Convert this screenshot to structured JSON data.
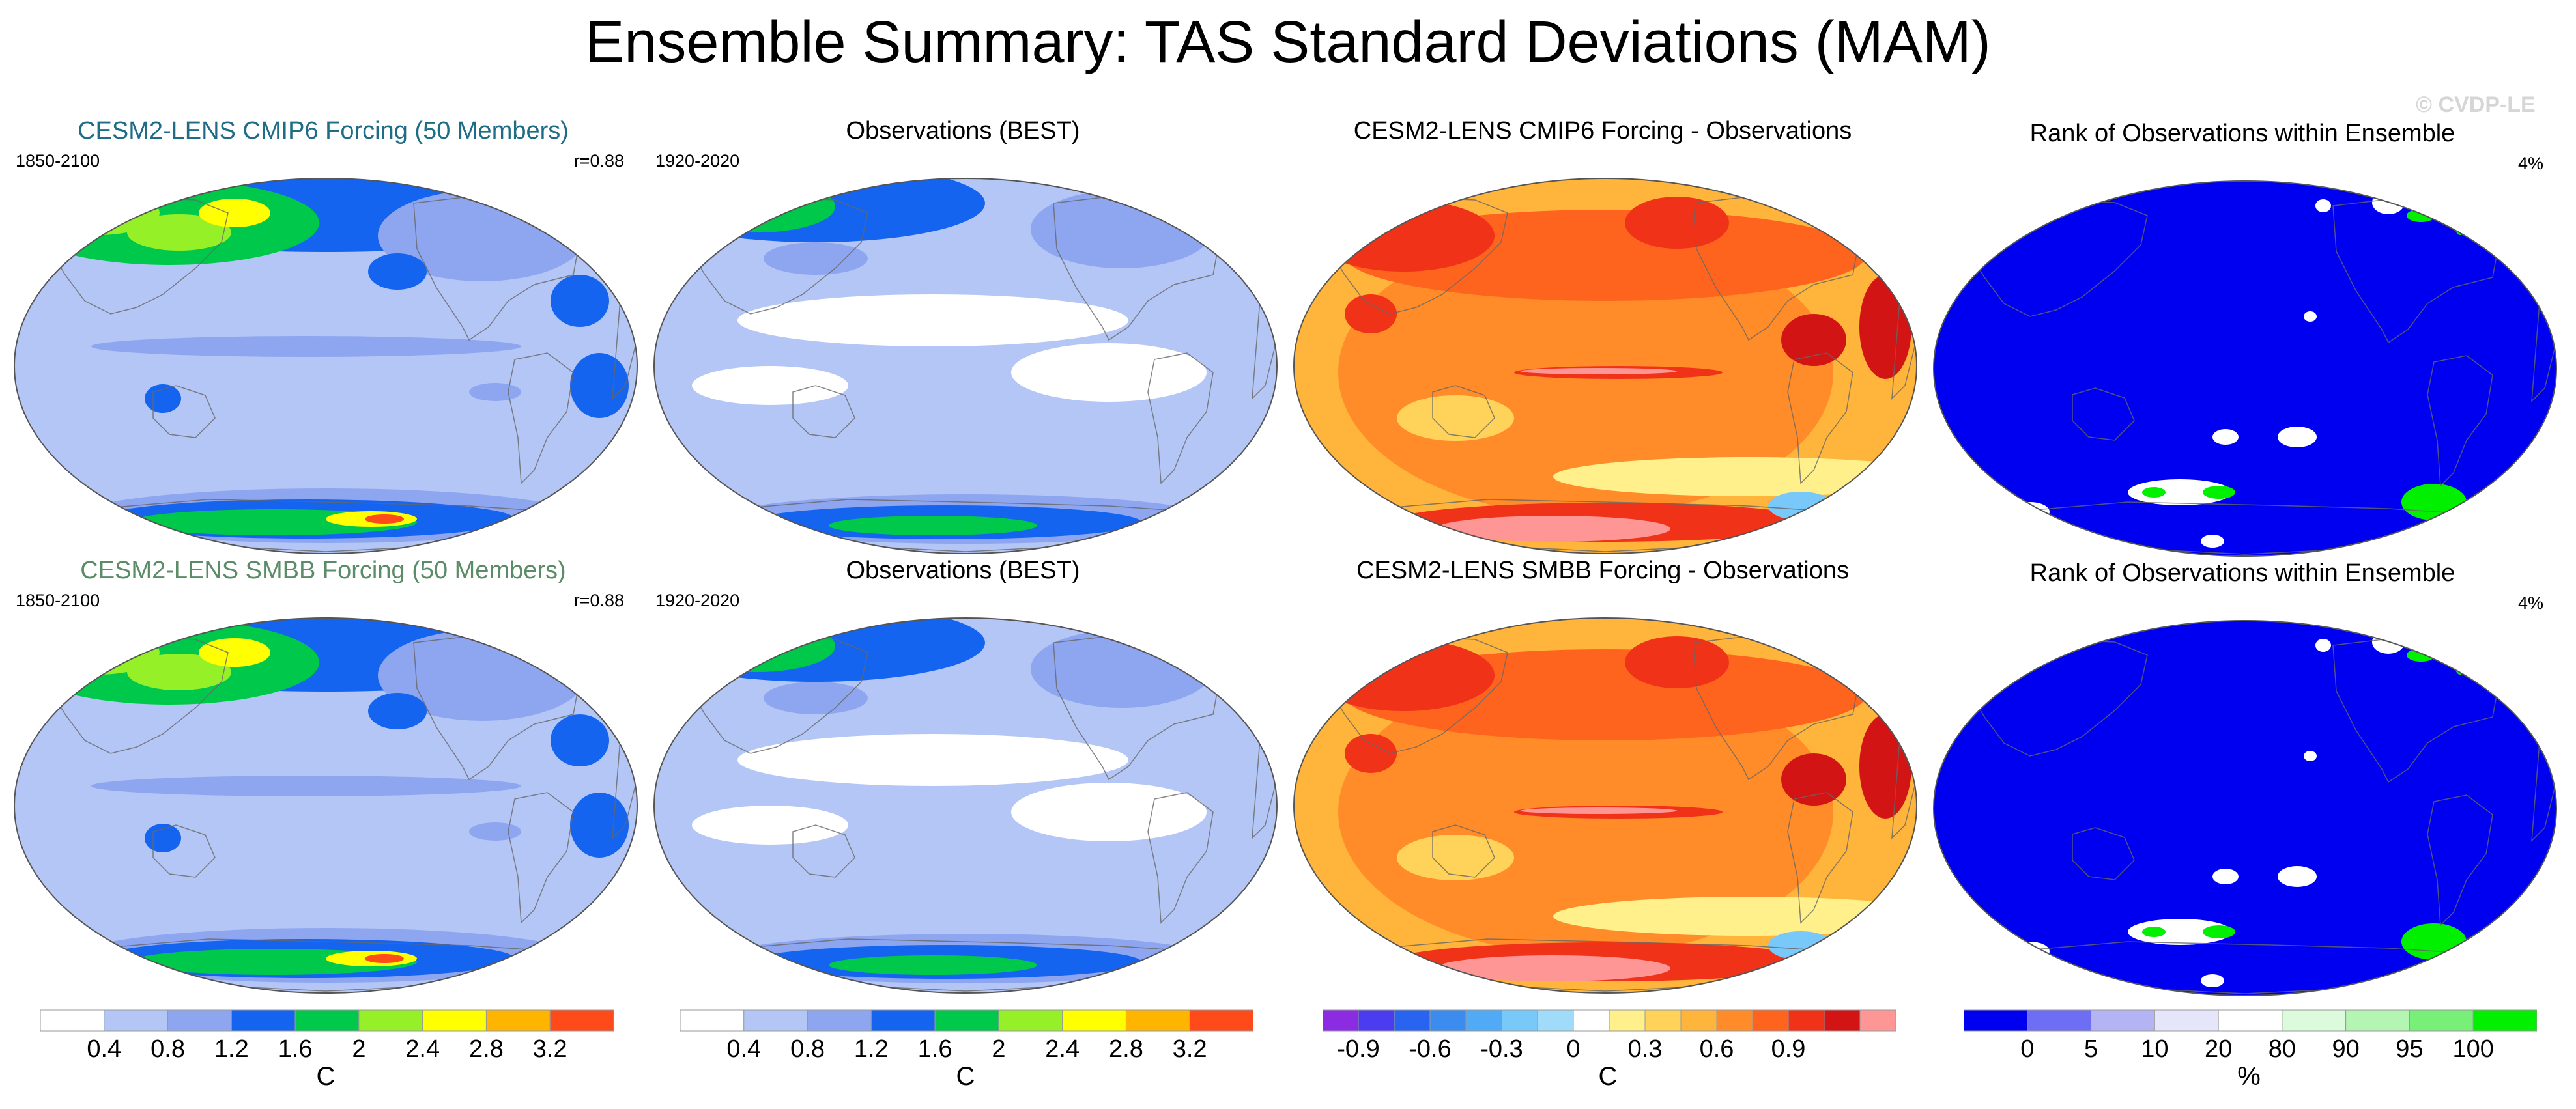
{
  "figure": {
    "title": "Ensemble Summary: TAS Standard Deviations (MAM)",
    "watermark": "© CVDP-LE"
  },
  "colors": {
    "title_teal": "#1e6c86",
    "title_green": "#5b8c68",
    "sd_levels": [
      "#ffffff",
      "#b4c6f5",
      "#8ea6f0",
      "#1464f0",
      "#00c84b",
      "#96f028",
      "#ffff00",
      "#ffb400",
      "#ff4a1a"
    ],
    "diff_levels": [
      "#8b2be2",
      "#4b3cf0",
      "#2864f0",
      "#3c8cf0",
      "#50aaf5",
      "#78c8fa",
      "#a0dcfa",
      "#ffffff",
      "#fff08c",
      "#ffd25a",
      "#ffb43c",
      "#ff8c28",
      "#ff641e",
      "#f03218",
      "#d21414",
      "#ff9696"
    ],
    "rank_levels": [
      "#0000f0",
      "#6e6ef5",
      "#b4b4f5",
      "#e6e6fa",
      "#ffffff",
      "#dcfadc",
      "#b4f5b4",
      "#78f078",
      "#00f000"
    ]
  },
  "chart_data": [
    {
      "type": "heatmap",
      "id": "p1",
      "title": "CESM2-LENS CMIP6 Forcing (50 Members)",
      "period": "1850-2100",
      "corner": "r=0.88",
      "scheme": "sd",
      "variant": "model"
    },
    {
      "type": "heatmap",
      "id": "p2",
      "title": "Observations (BEST)",
      "period": "1920-2020",
      "corner": "",
      "scheme": "sd",
      "variant": "obs"
    },
    {
      "type": "heatmap",
      "id": "p3",
      "title": "CESM2-LENS CMIP6 Forcing - Observations",
      "period": "",
      "corner": "",
      "scheme": "diff",
      "variant": "diff"
    },
    {
      "type": "heatmap",
      "id": "p4",
      "title": "Rank of Observations within Ensemble",
      "period": "",
      "corner": "4%",
      "scheme": "rank",
      "variant": "rank"
    },
    {
      "type": "heatmap",
      "id": "p5",
      "title": "CESM2-LENS SMBB Forcing (50 Members)",
      "period": "1850-2100",
      "corner": "r=0.88",
      "scheme": "sd",
      "variant": "model"
    },
    {
      "type": "heatmap",
      "id": "p6",
      "title": "Observations (BEST)",
      "period": "1920-2020",
      "corner": "",
      "scheme": "sd",
      "variant": "obs"
    },
    {
      "type": "heatmap",
      "id": "p7",
      "title": "CESM2-LENS SMBB Forcing - Observations",
      "period": "",
      "corner": "",
      "scheme": "diff",
      "variant": "diff"
    },
    {
      "type": "heatmap",
      "id": "p8",
      "title": "Rank of Observations within Ensemble",
      "period": "",
      "corner": "4%",
      "scheme": "rank",
      "variant": "rank"
    }
  ],
  "colorbars": [
    {
      "id": "cb1",
      "scheme": "sd",
      "labels": [
        "0.4",
        "0.8",
        "1.2",
        "1.6",
        "2",
        "2.4",
        "2.8",
        "3.2"
      ],
      "unit": "C"
    },
    {
      "id": "cb2",
      "scheme": "sd",
      "labels": [
        "0.4",
        "0.8",
        "1.2",
        "1.6",
        "2",
        "2.4",
        "2.8",
        "3.2"
      ],
      "unit": "C"
    },
    {
      "id": "cb3",
      "scheme": "diff",
      "labels": [
        "-0.9",
        "-0.6",
        "-0.3",
        "0",
        "0.3",
        "0.6",
        "0.9"
      ],
      "unit": "C"
    },
    {
      "id": "cb4",
      "scheme": "rank",
      "labels": [
        "0",
        "5",
        "10",
        "20",
        "80",
        "90",
        "95",
        "100"
      ],
      "unit": "%"
    }
  ]
}
